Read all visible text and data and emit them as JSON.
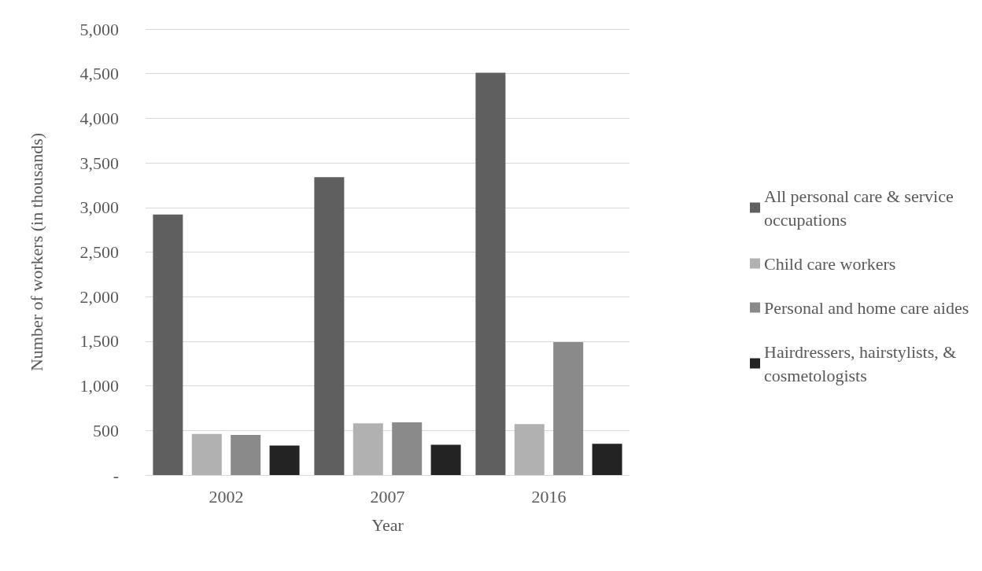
{
  "chart_data": {
    "type": "bar",
    "xlabel": "Year",
    "ylabel": "Number of workers (in thousands)",
    "categories": [
      "2002",
      "2007",
      "2016"
    ],
    "series": [
      {
        "name": "All personal care & service occupations",
        "color": "#5f5f5f",
        "values": [
          2920,
          3340,
          4510
        ]
      },
      {
        "name": "Child care workers",
        "color": "#b1b1b1",
        "values": [
          460,
          580,
          570
        ]
      },
      {
        "name": "Personal and home care aides",
        "color": "#8a8a8a",
        "values": [
          450,
          590,
          1490
        ]
      },
      {
        "name": "Hairdressers, hairstylists, & cosmetologists",
        "color": "#232323",
        "values": [
          330,
          340,
          350
        ]
      }
    ],
    "ylim": [
      0,
      5000
    ],
    "yticks": [
      {
        "value": 0,
        "label": "-"
      },
      500,
      {
        "value": 1000,
        "label": "1,000"
      },
      {
        "value": 1500,
        "label": "1,500"
      },
      {
        "value": 2000,
        "label": "2,000"
      },
      {
        "value": 2500,
        "label": "2,500"
      },
      {
        "value": 3000,
        "label": "3,000"
      },
      {
        "value": 3500,
        "label": "3,500"
      },
      {
        "value": 4000,
        "label": "4,000"
      },
      {
        "value": 4500,
        "label": "4,500"
      },
      {
        "value": 5000,
        "label": "5,000"
      }
    ],
    "grid": "y",
    "legend": "right"
  }
}
